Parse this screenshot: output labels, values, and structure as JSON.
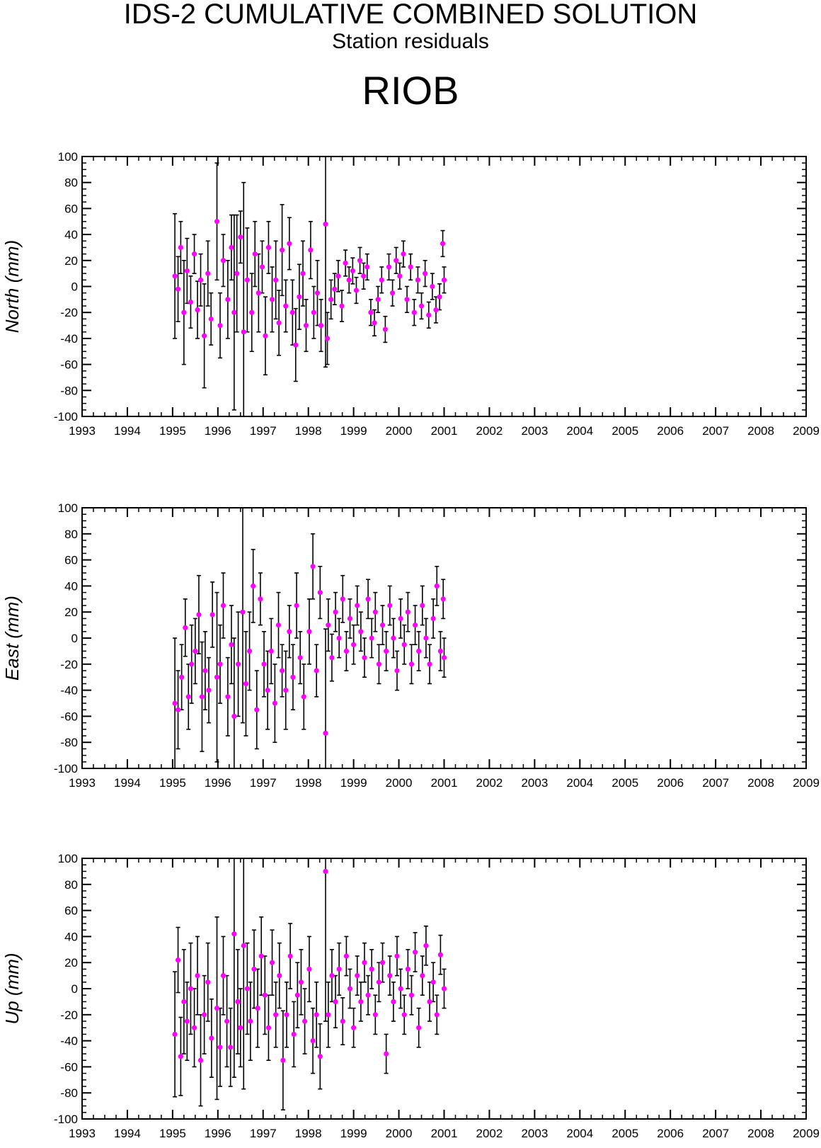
{
  "header": {
    "title": "IDS-2 CUMULATIVE COMBINED SOLUTION",
    "subtitle": "Station residuals",
    "station": "RIOB"
  },
  "colors": {
    "marker": "#ff00ff",
    "errorbar": "#000000",
    "axes": "#000000"
  },
  "chart_data": [
    {
      "type": "scatter",
      "ylabel": "North (mm)",
      "xlim": [
        1993,
        2009
      ],
      "ylim": [
        -100,
        100
      ],
      "x_ticks": [
        "1993",
        "1994",
        "1995",
        "1996",
        "1997",
        "1998",
        "1999",
        "2000",
        "2001",
        "2002",
        "2003",
        "2004",
        "2005",
        "2006",
        "2007",
        "2008",
        "2009"
      ],
      "y_ticks": [
        "100",
        "80",
        "60",
        "40",
        "20",
        "0",
        "-20",
        "-40",
        "-60",
        "-80",
        "-100"
      ],
      "error_bars": true,
      "data_range": [
        1995.05,
        2001.0
      ],
      "points": [
        [
          1995.05,
          8,
          48
        ],
        [
          1995.12,
          -2,
          25
        ],
        [
          1995.18,
          30,
          20
        ],
        [
          1995.25,
          -20,
          40
        ],
        [
          1995.32,
          12,
          25
        ],
        [
          1995.4,
          -12,
          20
        ],
        [
          1995.48,
          25,
          15
        ],
        [
          1995.55,
          -18,
          22
        ],
        [
          1995.62,
          5,
          20
        ],
        [
          1995.7,
          -38,
          40
        ],
        [
          1995.78,
          10,
          25
        ],
        [
          1995.85,
          -25,
          20
        ],
        [
          1995.98,
          50,
          45
        ],
        [
          1996.05,
          -30,
          25
        ],
        [
          1996.12,
          20,
          20
        ],
        [
          1996.22,
          -10,
          30
        ],
        [
          1996.3,
          30,
          25
        ],
        [
          1996.36,
          -20,
          75
        ],
        [
          1996.42,
          10,
          45
        ],
        [
          1996.5,
          38,
          20
        ],
        [
          1996.57,
          -35,
          115
        ],
        [
          1996.65,
          5,
          40
        ],
        [
          1996.75,
          -20,
          30
        ],
        [
          1996.82,
          25,
          25
        ],
        [
          1996.9,
          -5,
          30
        ],
        [
          1996.98,
          15,
          20
        ],
        [
          1997.05,
          -38,
          30
        ],
        [
          1997.12,
          30,
          20
        ],
        [
          1997.2,
          -10,
          25
        ],
        [
          1997.28,
          5,
          30
        ],
        [
          1997.35,
          -28,
          25
        ],
        [
          1997.42,
          28,
          35
        ],
        [
          1997.5,
          -15,
          20
        ],
        [
          1997.58,
          33,
          20
        ],
        [
          1997.65,
          -20,
          25
        ],
        [
          1997.72,
          -45,
          28
        ],
        [
          1997.8,
          -8,
          25
        ],
        [
          1997.88,
          10,
          25
        ],
        [
          1997.95,
          -30,
          20
        ],
        [
          1998.05,
          28,
          22
        ],
        [
          1998.12,
          -20,
          20
        ],
        [
          1998.2,
          -5,
          25
        ],
        [
          1998.28,
          -30,
          20
        ],
        [
          1998.38,
          48,
          110
        ],
        [
          1998.42,
          -40,
          20
        ],
        [
          1998.5,
          -10,
          15
        ],
        [
          1998.58,
          -2,
          12
        ],
        [
          1998.66,
          8,
          12
        ],
        [
          1998.74,
          -15,
          12
        ],
        [
          1998.82,
          18,
          10
        ],
        [
          1998.9,
          5,
          10
        ],
        [
          1998.98,
          12,
          10
        ],
        [
          1999.06,
          -3,
          10
        ],
        [
          1999.14,
          20,
          10
        ],
        [
          1999.22,
          8,
          10
        ],
        [
          1999.3,
          15,
          10
        ],
        [
          1999.38,
          -20,
          10
        ],
        [
          1999.46,
          -28,
          10
        ],
        [
          1999.54,
          -10,
          10
        ],
        [
          1999.62,
          5,
          10
        ],
        [
          1999.7,
          -33,
          10
        ],
        [
          1999.78,
          15,
          10
        ],
        [
          1999.86,
          -5,
          10
        ],
        [
          1999.94,
          20,
          10
        ],
        [
          2000.02,
          8,
          10
        ],
        [
          2000.1,
          25,
          10
        ],
        [
          2000.18,
          -10,
          10
        ],
        [
          2000.26,
          15,
          10
        ],
        [
          2000.34,
          -20,
          10
        ],
        [
          2000.42,
          5,
          10
        ],
        [
          2000.5,
          -15,
          10
        ],
        [
          2000.58,
          10,
          10
        ],
        [
          2000.66,
          -22,
          10
        ],
        [
          2000.74,
          0,
          10
        ],
        [
          2000.82,
          -18,
          10
        ],
        [
          2000.9,
          -8,
          10
        ],
        [
          2000.97,
          33,
          10
        ],
        [
          2001.0,
          5,
          10
        ]
      ]
    },
    {
      "type": "scatter",
      "ylabel": "East (mm)",
      "xlim": [
        1993,
        2009
      ],
      "ylim": [
        -100,
        100
      ],
      "x_ticks": [
        "1993",
        "1994",
        "1995",
        "1996",
        "1997",
        "1998",
        "1999",
        "2000",
        "2001",
        "2002",
        "2003",
        "2004",
        "2005",
        "2006",
        "2007",
        "2008",
        "2009"
      ],
      "y_ticks": [
        "100",
        "80",
        "60",
        "40",
        "20",
        "0",
        "-20",
        "-40",
        "-60",
        "-80",
        "-100"
      ],
      "error_bars": true,
      "data_range": [
        1995.05,
        2001.0
      ],
      "points": [
        [
          1995.05,
          -50,
          50
        ],
        [
          1995.12,
          -55,
          30
        ],
        [
          1995.2,
          -30,
          25
        ],
        [
          1995.28,
          8,
          22
        ],
        [
          1995.35,
          -45,
          25
        ],
        [
          1995.42,
          -20,
          30
        ],
        [
          1995.5,
          -10,
          25
        ],
        [
          1995.58,
          18,
          30
        ],
        [
          1995.65,
          -45,
          42
        ],
        [
          1995.72,
          -25,
          30
        ],
        [
          1995.8,
          -40,
          25
        ],
        [
          1995.88,
          18,
          25
        ],
        [
          1995.98,
          -30,
          65
        ],
        [
          1996.05,
          -20,
          30
        ],
        [
          1996.12,
          25,
          25
        ],
        [
          1996.22,
          -45,
          30
        ],
        [
          1996.3,
          -5,
          30
        ],
        [
          1996.36,
          -60,
          60
        ],
        [
          1996.45,
          -20,
          40
        ],
        [
          1996.55,
          20,
          85
        ],
        [
          1996.62,
          -35,
          40
        ],
        [
          1996.7,
          -10,
          30
        ],
        [
          1996.78,
          40,
          28
        ],
        [
          1996.86,
          -55,
          30
        ],
        [
          1996.94,
          30,
          20
        ],
        [
          1997.02,
          -20,
          25
        ],
        [
          1997.1,
          -40,
          30
        ],
        [
          1997.18,
          -10,
          25
        ],
        [
          1997.26,
          -50,
          30
        ],
        [
          1997.34,
          10,
          25
        ],
        [
          1997.42,
          -25,
          20
        ],
        [
          1997.5,
          -40,
          30
        ],
        [
          1997.58,
          5,
          20
        ],
        [
          1997.66,
          -30,
          25
        ],
        [
          1997.74,
          25,
          25
        ],
        [
          1997.82,
          -15,
          20
        ],
        [
          1997.9,
          -45,
          25
        ],
        [
          1998.02,
          5,
          25
        ],
        [
          1998.1,
          55,
          25
        ],
        [
          1998.18,
          -25,
          20
        ],
        [
          1998.26,
          35,
          20
        ],
        [
          1998.38,
          -73,
          80
        ],
        [
          1998.44,
          10,
          20
        ],
        [
          1998.52,
          -15,
          18
        ],
        [
          1998.6,
          20,
          15
        ],
        [
          1998.68,
          0,
          15
        ],
        [
          1998.76,
          30,
          18
        ],
        [
          1998.84,
          -10,
          15
        ],
        [
          1998.92,
          15,
          15
        ],
        [
          1999.0,
          -5,
          15
        ],
        [
          1999.08,
          25,
          15
        ],
        [
          1999.16,
          5,
          15
        ],
        [
          1999.24,
          -15,
          15
        ],
        [
          1999.32,
          30,
          15
        ],
        [
          1999.4,
          0,
          15
        ],
        [
          1999.48,
          20,
          15
        ],
        [
          1999.56,
          -20,
          15
        ],
        [
          1999.64,
          10,
          15
        ],
        [
          1999.72,
          -10,
          15
        ],
        [
          1999.8,
          25,
          15
        ],
        [
          1999.88,
          0,
          15
        ],
        [
          1999.96,
          -25,
          15
        ],
        [
          2000.04,
          15,
          15
        ],
        [
          2000.12,
          -5,
          15
        ],
        [
          2000.2,
          20,
          15
        ],
        [
          2000.28,
          -20,
          15
        ],
        [
          2000.36,
          10,
          15
        ],
        [
          2000.44,
          -10,
          15
        ],
        [
          2000.52,
          25,
          15
        ],
        [
          2000.6,
          0,
          15
        ],
        [
          2000.68,
          -20,
          15
        ],
        [
          2000.76,
          15,
          15
        ],
        [
          2000.84,
          40,
          15
        ],
        [
          2000.92,
          -10,
          15
        ],
        [
          2000.98,
          30,
          15
        ],
        [
          2001.0,
          -15,
          15
        ]
      ]
    },
    {
      "type": "scatter",
      "ylabel": "Up (mm)",
      "xlim": [
        1993,
        2009
      ],
      "ylim": [
        -100,
        100
      ],
      "x_ticks": [
        "1993",
        "1994",
        "1995",
        "1996",
        "1997",
        "1998",
        "1999",
        "2000",
        "2001",
        "2002",
        "2003",
        "2004",
        "2005",
        "2006",
        "2007",
        "2008",
        "2009"
      ],
      "y_ticks": [
        "100",
        "80",
        "60",
        "40",
        "20",
        "0",
        "-20",
        "-40",
        "-60",
        "-80",
        "-100"
      ],
      "error_bars": true,
      "data_range": [
        1995.05,
        2001.0
      ],
      "points": [
        [
          1995.05,
          -35,
          48
        ],
        [
          1995.12,
          22,
          25
        ],
        [
          1995.18,
          -52,
          30
        ],
        [
          1995.25,
          -10,
          40
        ],
        [
          1995.32,
          -25,
          30
        ],
        [
          1995.4,
          0,
          35
        ],
        [
          1995.48,
          -30,
          30
        ],
        [
          1995.55,
          10,
          30
        ],
        [
          1995.62,
          -55,
          35
        ],
        [
          1995.7,
          -20,
          30
        ],
        [
          1995.78,
          5,
          30
        ],
        [
          1995.86,
          -38,
          30
        ],
        [
          1995.98,
          -15,
          70
        ],
        [
          1996.05,
          -45,
          30
        ],
        [
          1996.12,
          10,
          30
        ],
        [
          1996.2,
          -25,
          35
        ],
        [
          1996.28,
          -45,
          30
        ],
        [
          1996.36,
          42,
          110
        ],
        [
          1996.44,
          -10,
          40
        ],
        [
          1996.5,
          -30,
          30
        ],
        [
          1996.57,
          33,
          110
        ],
        [
          1996.65,
          0,
          35
        ],
        [
          1996.72,
          -25,
          30
        ],
        [
          1996.8,
          15,
          30
        ],
        [
          1996.88,
          -15,
          30
        ],
        [
          1996.96,
          25,
          30
        ],
        [
          1997.04,
          -5,
          30
        ],
        [
          1997.12,
          -30,
          25
        ],
        [
          1997.2,
          20,
          25
        ],
        [
          1997.28,
          -20,
          25
        ],
        [
          1997.36,
          10,
          25
        ],
        [
          1997.44,
          -55,
          38
        ],
        [
          1997.52,
          -20,
          25
        ],
        [
          1997.6,
          25,
          25
        ],
        [
          1997.68,
          -35,
          25
        ],
        [
          1997.76,
          -5,
          25
        ],
        [
          1997.84,
          5,
          25
        ],
        [
          1997.92,
          -25,
          25
        ],
        [
          1998.02,
          15,
          25
        ],
        [
          1998.1,
          -40,
          25
        ],
        [
          1998.18,
          -20,
          25
        ],
        [
          1998.26,
          -52,
          25
        ],
        [
          1998.38,
          90,
          115
        ],
        [
          1998.44,
          -20,
          25
        ],
        [
          1998.52,
          10,
          20
        ],
        [
          1998.6,
          -10,
          20
        ],
        [
          1998.68,
          15,
          20
        ],
        [
          1998.76,
          -25,
          18
        ],
        [
          1998.84,
          25,
          15
        ],
        [
          1998.92,
          0,
          15
        ],
        [
          1999.0,
          -30,
          15
        ],
        [
          1999.08,
          10,
          15
        ],
        [
          1999.16,
          -10,
          15
        ],
        [
          1999.24,
          20,
          15
        ],
        [
          1999.32,
          -5,
          15
        ],
        [
          1999.4,
          15,
          15
        ],
        [
          1999.48,
          -20,
          15
        ],
        [
          1999.56,
          5,
          15
        ],
        [
          1999.64,
          20,
          15
        ],
        [
          1999.72,
          -50,
          15
        ],
        [
          1999.8,
          10,
          15
        ],
        [
          1999.88,
          -10,
          15
        ],
        [
          1999.96,
          25,
          15
        ],
        [
          2000.04,
          0,
          15
        ],
        [
          2000.12,
          -20,
          15
        ],
        [
          2000.2,
          15,
          15
        ],
        [
          2000.28,
          -5,
          15
        ],
        [
          2000.36,
          28,
          15
        ],
        [
          2000.44,
          -30,
          15
        ],
        [
          2000.52,
          10,
          15
        ],
        [
          2000.6,
          33,
          15
        ],
        [
          2000.68,
          -10,
          15
        ],
        [
          2000.76,
          5,
          15
        ],
        [
          2000.84,
          -20,
          15
        ],
        [
          2000.92,
          26,
          15
        ],
        [
          2001.0,
          0,
          15
        ]
      ]
    }
  ]
}
